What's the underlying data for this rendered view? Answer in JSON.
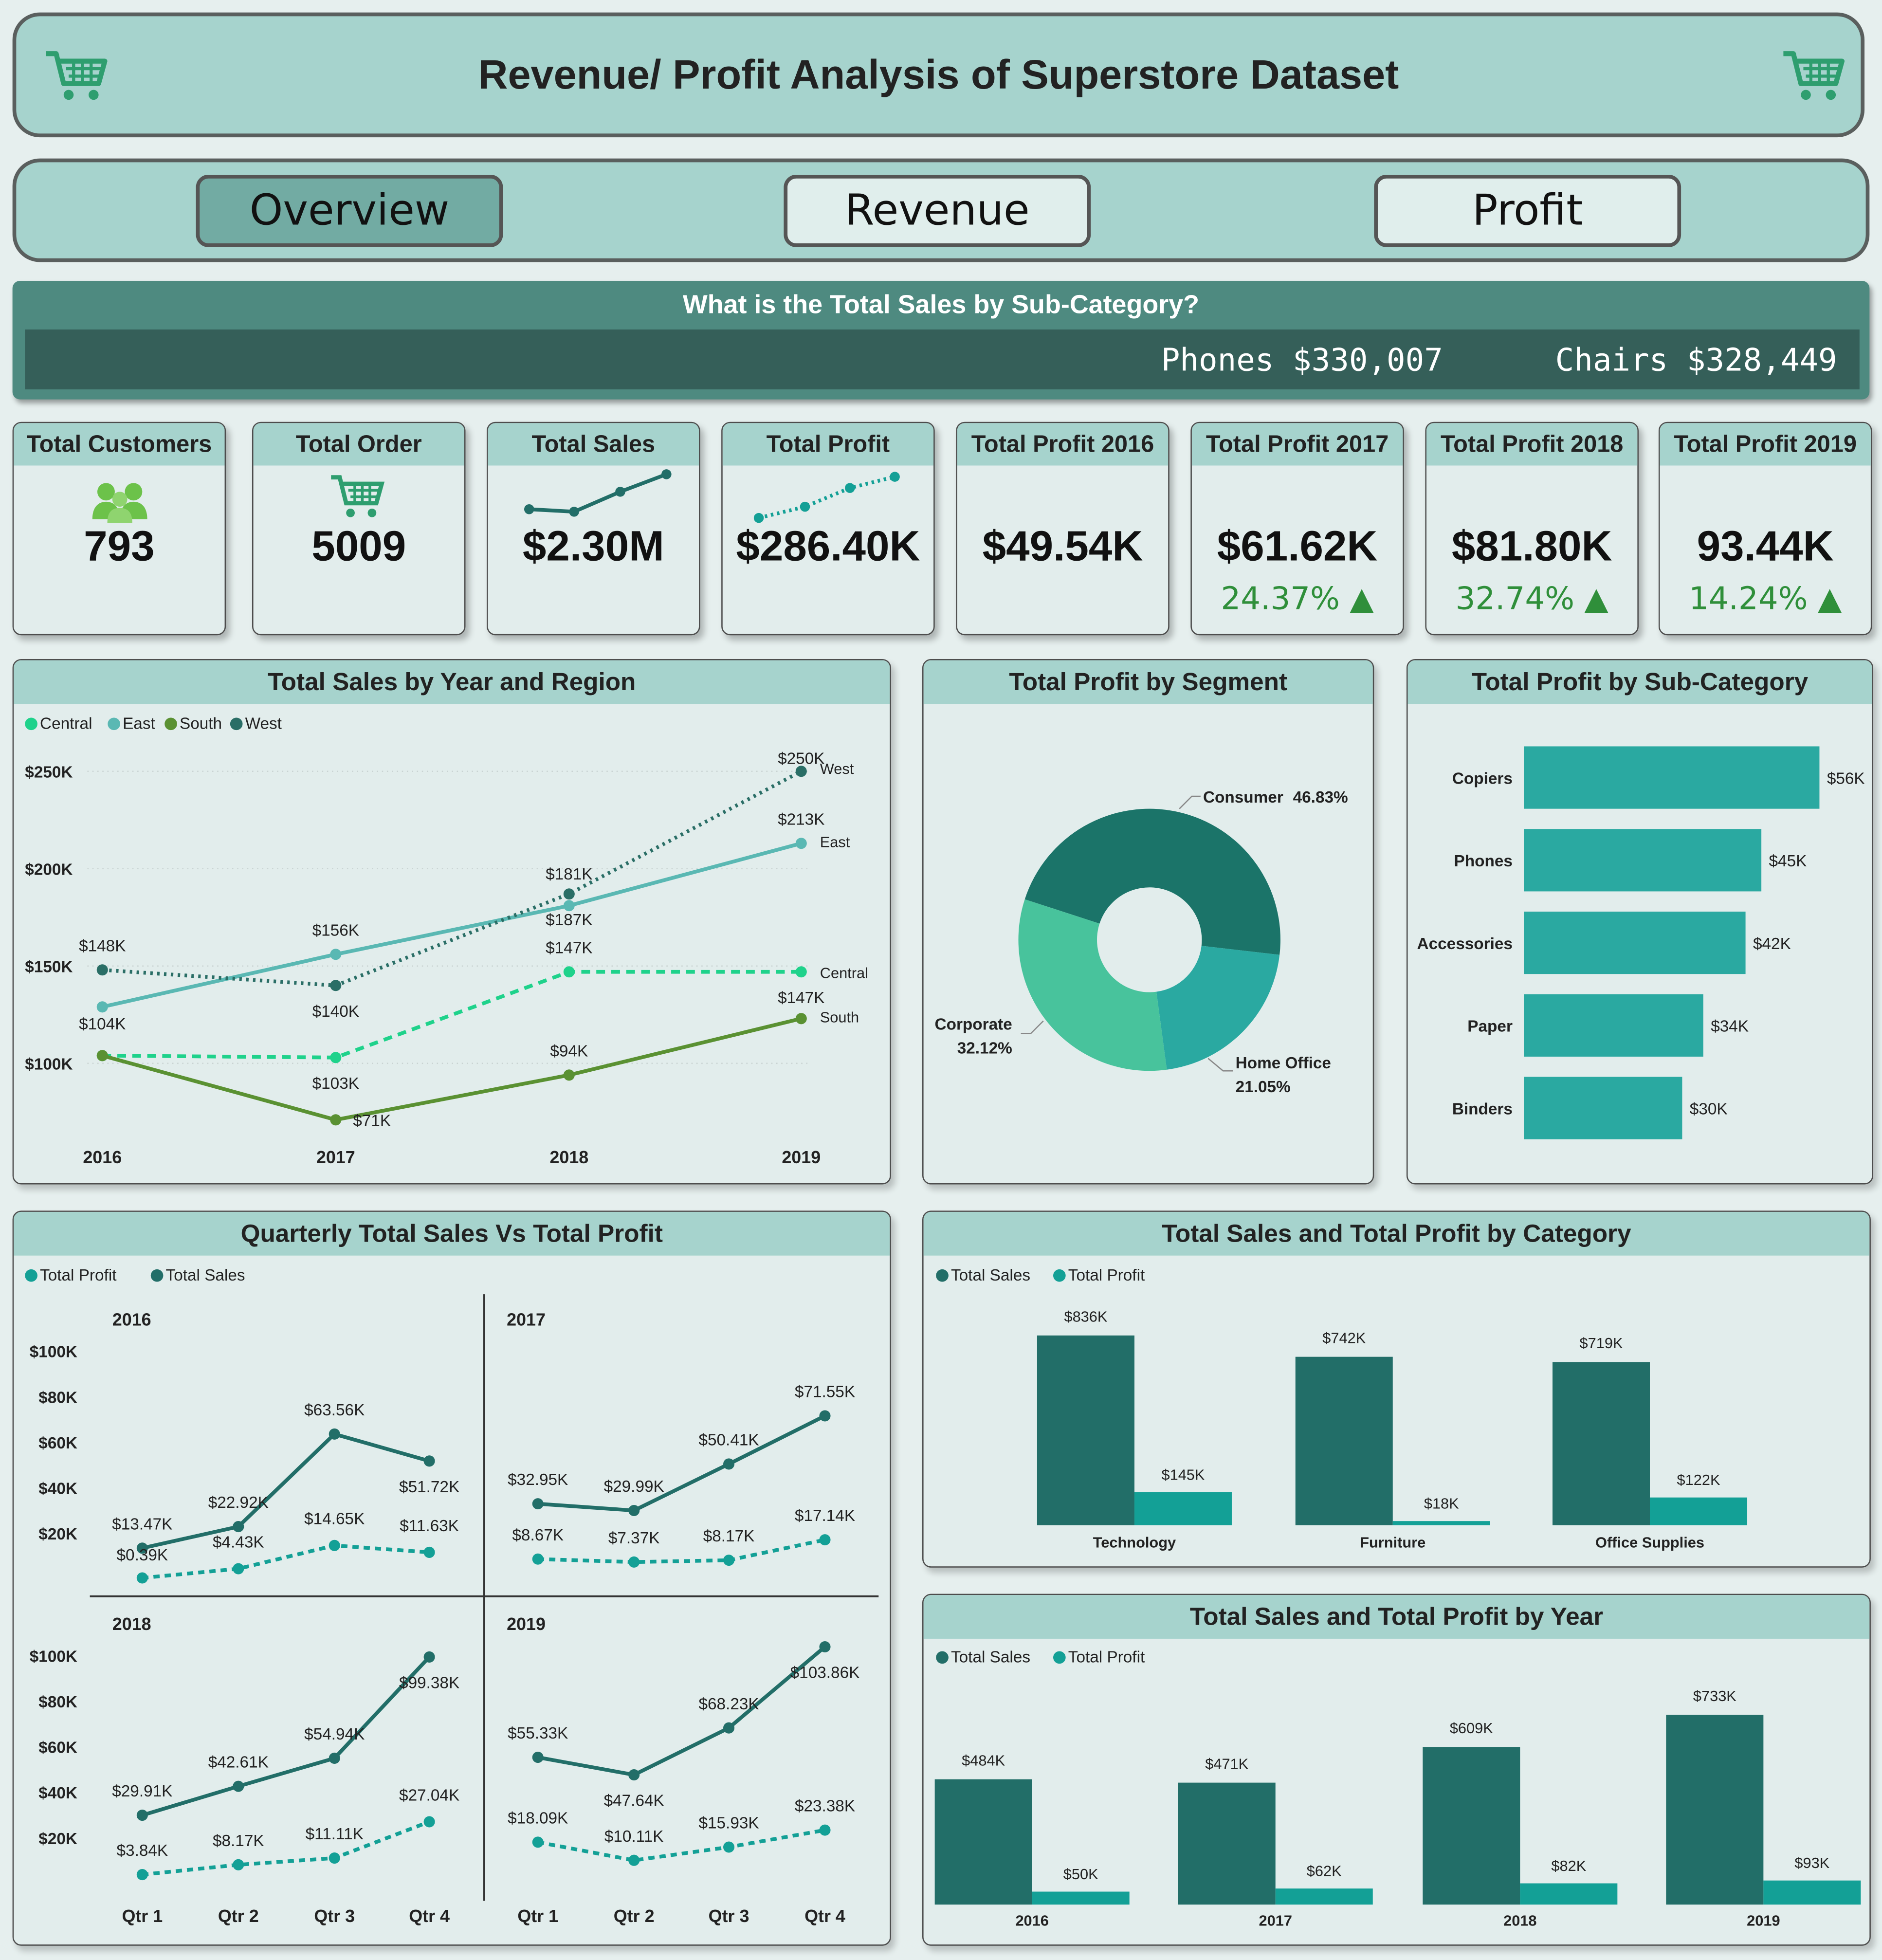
{
  "header": {
    "title": "Revenue/ Profit Analysis of Superstore Dataset",
    "icon": "shopping-cart-icon"
  },
  "nav": {
    "tabs": [
      {
        "label": "Overview",
        "active": true
      },
      {
        "label": "Revenue",
        "active": false
      },
      {
        "label": "Profit",
        "active": false
      }
    ]
  },
  "banner": {
    "question": "What is the Total Sales by Sub-Category?",
    "ticker": [
      {
        "name": "Phones",
        "value": "$330,007"
      },
      {
        "name": "Chairs",
        "value": "$328,449"
      }
    ]
  },
  "kpis": [
    {
      "title": "Total Customers",
      "value": "793",
      "icon": "people-icon"
    },
    {
      "title": "Total Order",
      "value": "5009",
      "icon": "shopping-cart-icon"
    },
    {
      "title": "Total Sales",
      "value": "$2.30M",
      "icon": "sparkline-solid"
    },
    {
      "title": "Total Profit",
      "value": "$286.40K",
      "icon": "sparkline-dotted"
    },
    {
      "title": "Total Profit 2016",
      "value": "$49.54K"
    },
    {
      "title": "Total Profit 2017",
      "value": "$61.62K",
      "change": "24.37%",
      "trend": "up"
    },
    {
      "title": "Total Profit 2018",
      "value": "$81.80K",
      "change": "32.74%",
      "trend": "up"
    },
    {
      "title": "Total Profit 2019",
      "value": "93.44K",
      "change": "14.24%",
      "trend": "up"
    }
  ],
  "colors": {
    "header_bg": "#a6d3cd",
    "panel_bg": "#e2edec",
    "banner": "#4e8a80",
    "sales": "#226e68",
    "profit": "#13a096",
    "trend_up": "#2f8f3a",
    "cart": "#2e9e6f"
  },
  "chart_data": [
    {
      "type": "line",
      "title": "Total Sales by Year and Region",
      "categories": [
        "2016",
        "2017",
        "2018",
        "2019"
      ],
      "yticks": [
        "$100K",
        "$150K",
        "$200K",
        "$250K"
      ],
      "ylim": [
        100,
        250
      ],
      "grid": true,
      "legend": "top-left",
      "series": [
        {
          "name": "Central",
          "color": "#1fd28b",
          "style": "dashed",
          "values": [
            104,
            103,
            147,
            147
          ],
          "labels": [
            "$104K",
            "$103K",
            "$147K",
            "$147K"
          ]
        },
        {
          "name": "East",
          "color": "#5ab8b3",
          "style": "solid",
          "values": [
            129,
            156,
            181,
            213
          ],
          "labels": [
            null,
            "$156K",
            "$181K",
            "$213K"
          ]
        },
        {
          "name": "South",
          "color": "#5a9132",
          "style": "solid",
          "values": [
            104,
            71,
            94,
            123
          ],
          "labels": [
            null,
            "$71K",
            "$94K",
            null
          ]
        },
        {
          "name": "West",
          "color": "#2a6e66",
          "style": "dotted",
          "values": [
            148,
            140,
            187,
            250
          ],
          "labels": [
            "$148K",
            "$140K",
            "$187K",
            "$250K"
          ]
        }
      ]
    },
    {
      "type": "pie",
      "title": "Total Profit by Segment",
      "slices": [
        {
          "name": "Consumer",
          "value": 46.83,
          "label": "46.83%",
          "color": "#1b7469"
        },
        {
          "name": "Home Office",
          "value": 21.05,
          "label": "21.05%",
          "color": "#2aa9a1"
        },
        {
          "name": "Corporate",
          "value": 32.12,
          "label": "32.12%",
          "color": "#48c39c"
        }
      ]
    },
    {
      "type": "bar",
      "orientation": "horizontal",
      "title": "Total Profit by Sub-Category",
      "categories": [
        "Copiers",
        "Phones",
        "Accessories",
        "Paper",
        "Binders"
      ],
      "values": [
        56,
        45,
        42,
        34,
        30
      ],
      "labels": [
        "$56K",
        "$45K",
        "$42K",
        "$34K",
        "$30K"
      ],
      "color": "#2aa9a1"
    },
    {
      "type": "line",
      "title": "Quarterly Total Sales Vs Total Profit",
      "legend": "top-left",
      "categories": [
        "Qtr 1",
        "Qtr 2",
        "Qtr 3",
        "Qtr 4"
      ],
      "yticks": [
        "$20K",
        "$40K",
        "$60K",
        "$80K",
        "$100K"
      ],
      "ylim": [
        0,
        100
      ],
      "legend_entries": [
        {
          "name": "Total Profit",
          "color": "#13a096"
        },
        {
          "name": "Total Sales",
          "color": "#226e68"
        }
      ],
      "panels": [
        {
          "year": "2016",
          "sales": [
            13.47,
            22.92,
            63.56,
            51.72
          ],
          "sales_labels": [
            "$13.47K",
            "$22.92K",
            "$63.56K",
            "$51.72K"
          ],
          "profit": [
            0.39,
            4.43,
            14.65,
            11.63
          ],
          "profit_labels": [
            "$0.39K",
            "$4.43K",
            "$14.65K",
            "$11.63K"
          ]
        },
        {
          "year": "2017",
          "sales": [
            32.95,
            29.99,
            50.41,
            71.55
          ],
          "sales_labels": [
            "$32.95K",
            "$29.99K",
            "$50.41K",
            "$71.55K"
          ],
          "profit": [
            8.67,
            7.37,
            8.17,
            17.14
          ],
          "profit_labels": [
            "$8.67K",
            "$7.37K",
            "$8.17K",
            "$17.14K"
          ]
        },
        {
          "year": "2018",
          "sales": [
            29.91,
            42.61,
            54.94,
            99.38
          ],
          "sales_labels": [
            "$29.91K",
            "$42.61K",
            "$54.94K",
            "$99.38K"
          ],
          "profit": [
            3.84,
            8.17,
            11.11,
            27.04
          ],
          "profit_labels": [
            "$3.84K",
            "$8.17K",
            "$11.11K",
            "$27.04K"
          ]
        },
        {
          "year": "2019",
          "sales": [
            55.33,
            47.64,
            68.23,
            103.86
          ],
          "sales_labels": [
            "$55.33K",
            "$47.64K",
            "$68.23K",
            "$103.86K"
          ],
          "profit": [
            18.09,
            10.11,
            15.93,
            23.38
          ],
          "profit_labels": [
            "$18.09K",
            "$10.11K",
            "$15.93K",
            "$23.38K"
          ]
        }
      ]
    },
    {
      "type": "bar",
      "title": "Total Sales and Total Profit by Category",
      "legend": "top-left",
      "categories": [
        "Technology",
        "Furniture",
        "Office Supplies"
      ],
      "series": [
        {
          "name": "Total Sales",
          "color": "#226e68",
          "values": [
            836,
            742,
            719
          ],
          "labels": [
            "$836K",
            "$742K",
            "$719K"
          ]
        },
        {
          "name": "Total Profit",
          "color": "#13a096",
          "values": [
            145,
            18,
            122
          ],
          "labels": [
            "$145K",
            "$18K",
            "$122K"
          ]
        }
      ]
    },
    {
      "type": "bar",
      "title": "Total Sales and Total Profit by Year",
      "legend": "top-left",
      "categories": [
        "2016",
        "2017",
        "2018",
        "2019"
      ],
      "series": [
        {
          "name": "Total Sales",
          "color": "#226e68",
          "values": [
            484,
            471,
            609,
            733
          ],
          "labels": [
            "$484K",
            "$471K",
            "$609K",
            "$733K"
          ]
        },
        {
          "name": "Total Profit",
          "color": "#13a096",
          "values": [
            50,
            62,
            82,
            93
          ],
          "labels": [
            "$50K",
            "$62K",
            "$82K",
            "$93K"
          ]
        }
      ]
    }
  ]
}
